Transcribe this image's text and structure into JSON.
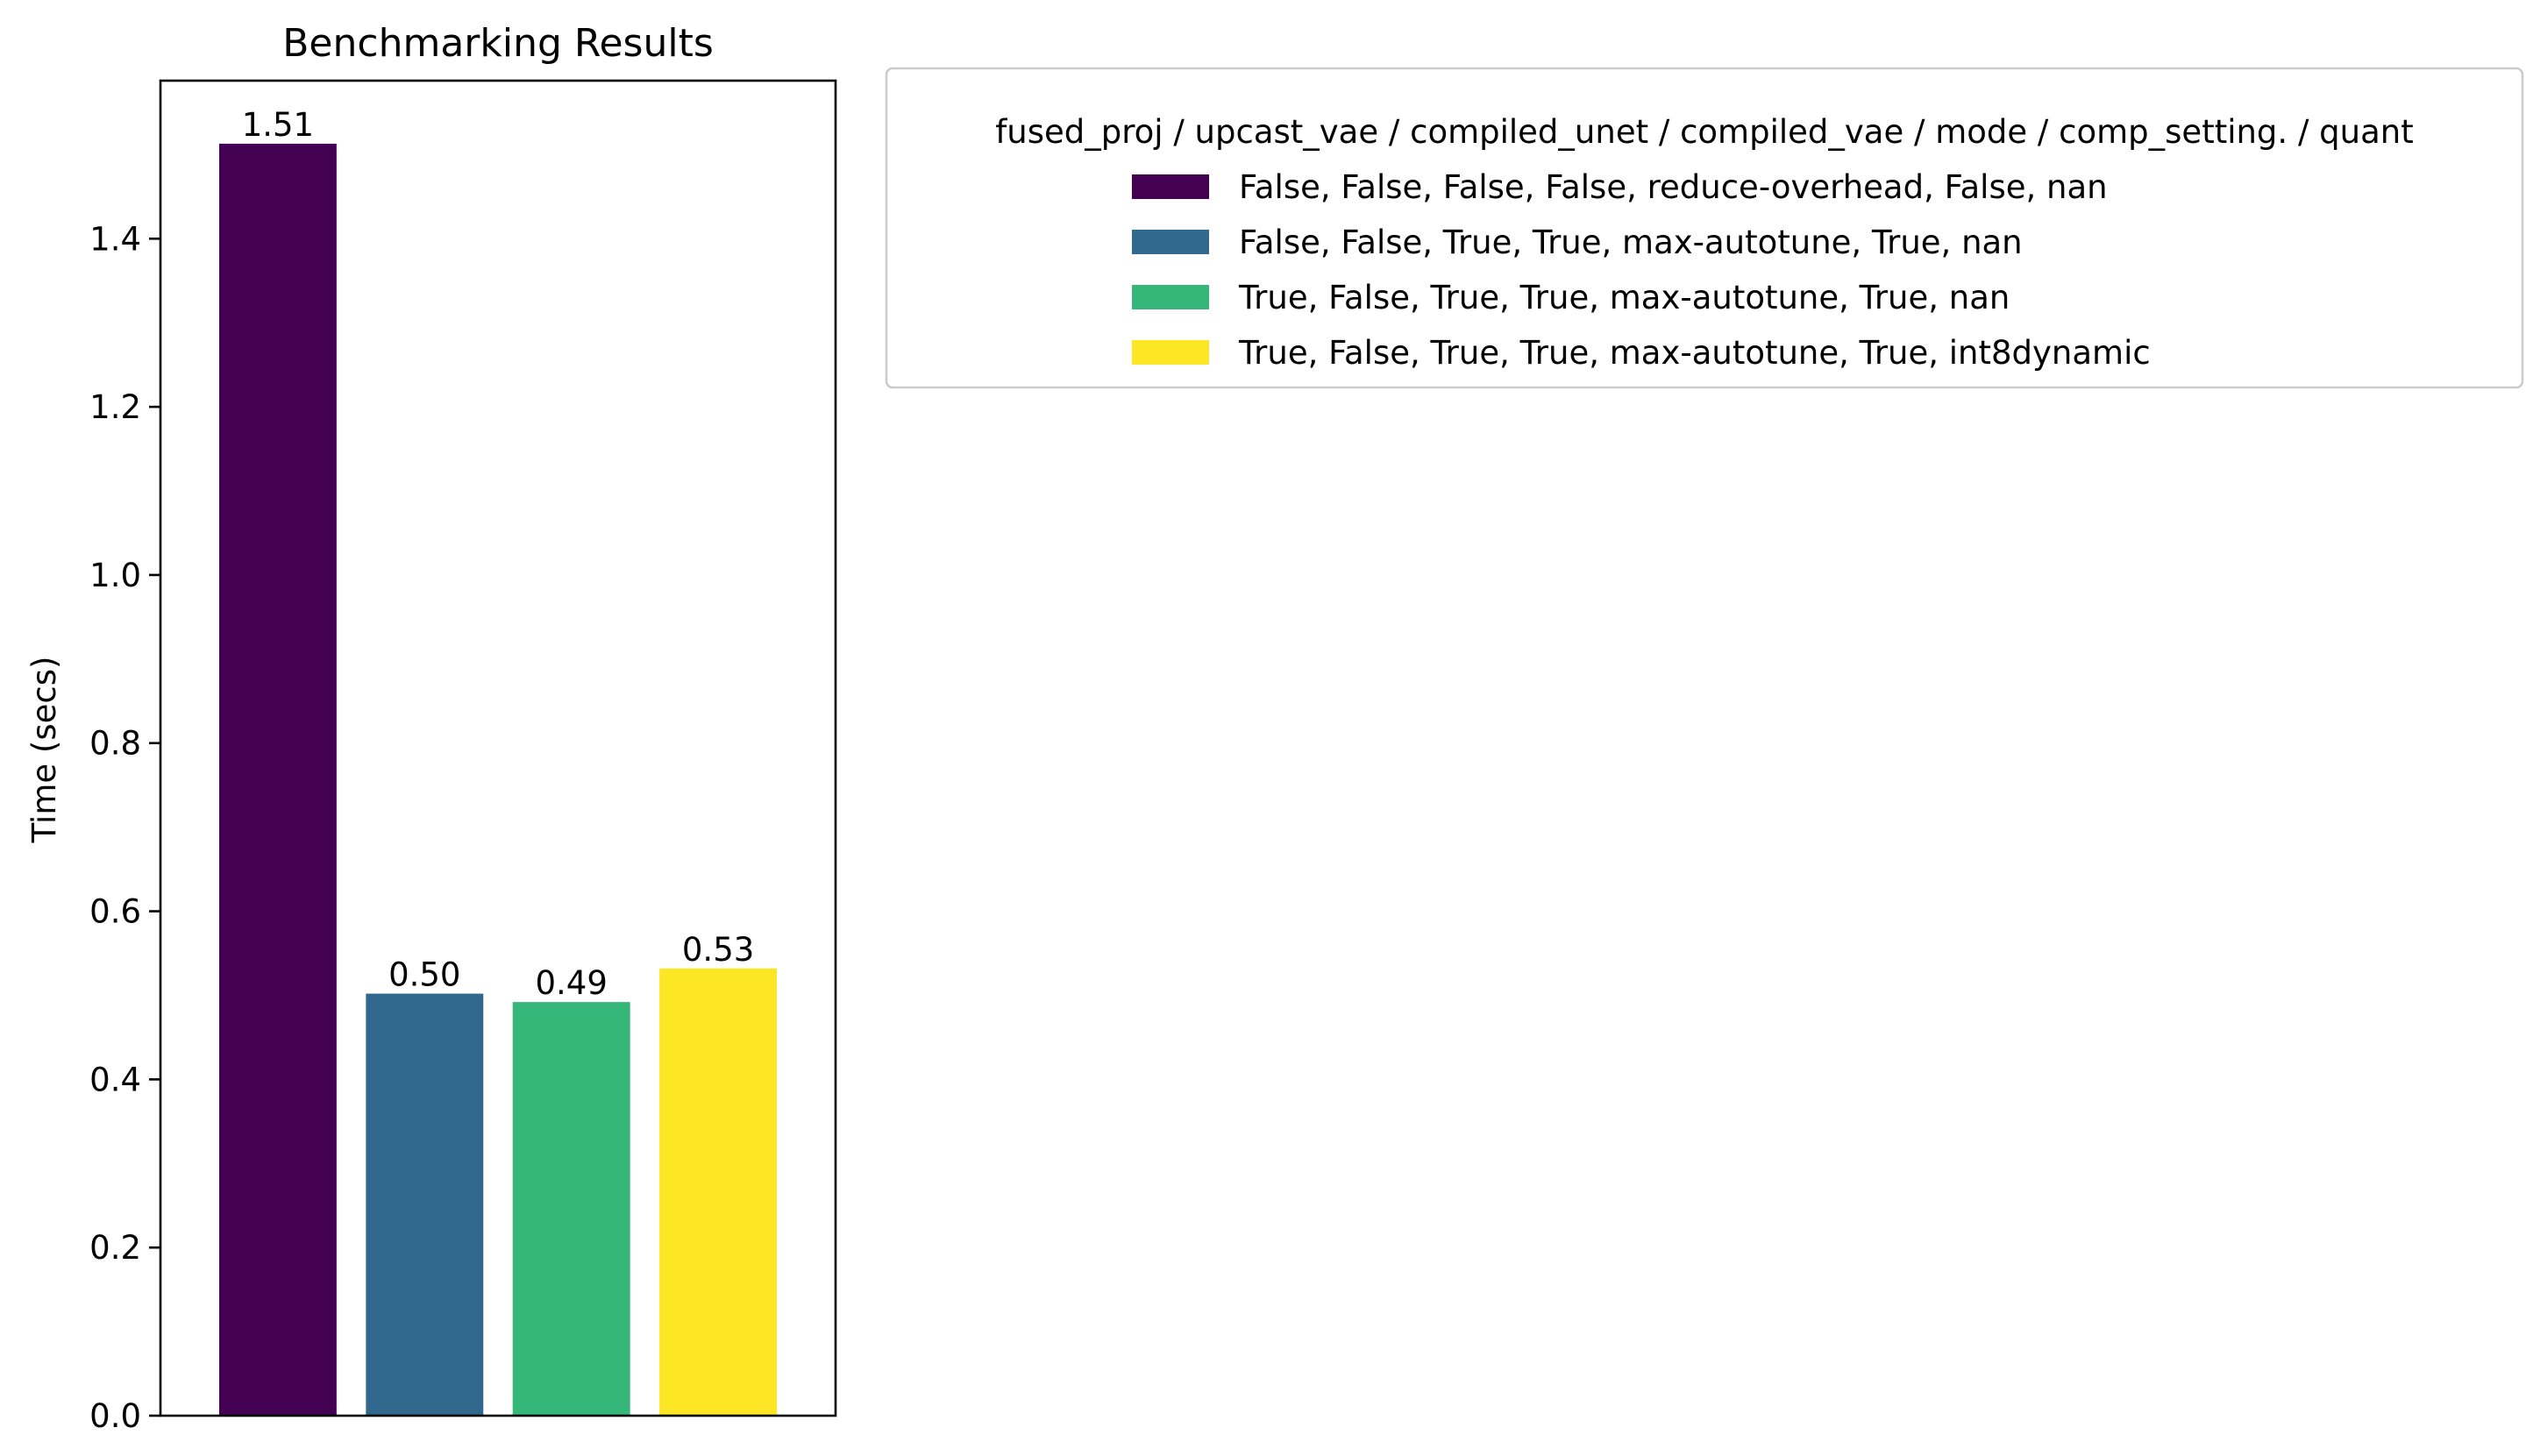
{
  "chart_data": {
    "type": "bar",
    "title": "Benchmarking Results",
    "xlabel": "",
    "ylabel": "Time (secs)",
    "ylim": [
      0,
      1.588
    ],
    "yticks": [
      "0.0",
      "0.2",
      "0.4",
      "0.6",
      "0.8",
      "1.0",
      "1.2",
      "1.4"
    ],
    "grid": false,
    "legend": {
      "placement": "outside-top-right",
      "title": "fused_proj / upcast_vae / compiled_unet / compiled_vae / mode / comp_setting. / quant"
    },
    "series": [
      {
        "name": "False, False, False, False, reduce-overhead, False, nan",
        "value": 1.513,
        "label": "1.51",
        "color": "#440154"
      },
      {
        "name": "False, False, True, True, max-autotune, True, nan",
        "value": 0.502,
        "label": "0.50",
        "color": "#31688e"
      },
      {
        "name": "True, False, True, True, max-autotune, True, nan",
        "value": 0.492,
        "label": "0.49",
        "color": "#35b779"
      },
      {
        "name": "True, False, True, True, max-autotune, True, int8dynamic",
        "value": 0.532,
        "label": "0.53",
        "color": "#fde725"
      }
    ]
  }
}
